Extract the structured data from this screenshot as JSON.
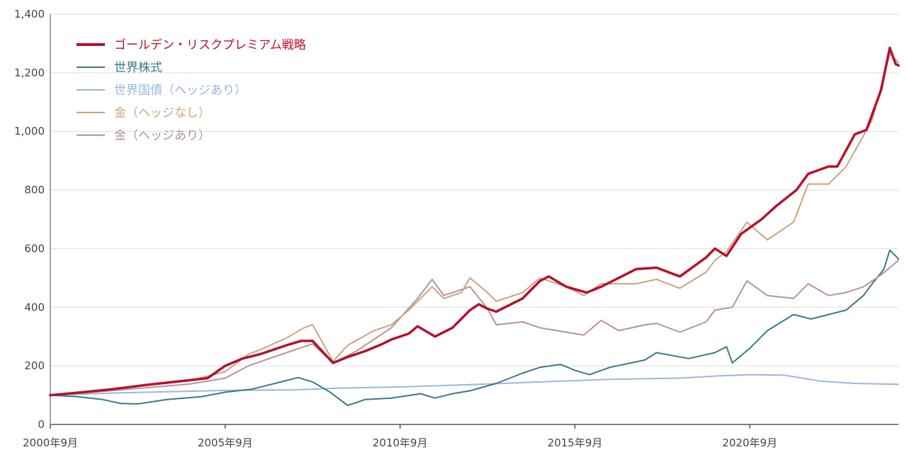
{
  "chart_data": {
    "type": "line",
    "title": "",
    "xlabel": "",
    "ylabel": "",
    "x_range": [
      "2000-09",
      "2024-12"
    ],
    "ylim": [
      0,
      1400
    ],
    "y_ticks": [
      0,
      200,
      400,
      600,
      800,
      1000,
      1200,
      1400
    ],
    "y_tick_labels": [
      "0",
      "200",
      "400",
      "600",
      "800",
      "1,000",
      "1,200",
      "1,400"
    ],
    "x_ticks": [
      "2000-09",
      "2005-09",
      "2010-09",
      "2015-09",
      "2020-09"
    ],
    "x_tick_labels": [
      "2000年9月",
      "2005年9月",
      "2010年9月",
      "2015年9月",
      "2020年9月"
    ],
    "grid": "horizontal",
    "legend_position": "top-left",
    "series": [
      {
        "name": "ゴールデン・リスクプレミアム戦略",
        "color": "#b5122e",
        "width": 3.5,
        "points": [
          [
            "2000-09",
            100
          ],
          [
            "2001-06",
            108
          ],
          [
            "2002-06",
            120
          ],
          [
            "2003-06",
            135
          ],
          [
            "2004-06",
            148
          ],
          [
            "2005-03",
            158
          ],
          [
            "2005-09",
            200
          ],
          [
            "2006-03",
            225
          ],
          [
            "2006-09",
            240
          ],
          [
            "2007-06",
            270
          ],
          [
            "2007-11",
            285
          ],
          [
            "2008-03",
            285
          ],
          [
            "2008-10",
            210
          ],
          [
            "2009-03",
            230
          ],
          [
            "2009-09",
            250
          ],
          [
            "2010-03",
            275
          ],
          [
            "2010-06",
            290
          ],
          [
            "2010-12",
            310
          ],
          [
            "2011-03",
            335
          ],
          [
            "2011-09",
            300
          ],
          [
            "2012-03",
            330
          ],
          [
            "2012-09",
            390
          ],
          [
            "2012-12",
            410
          ],
          [
            "2013-03",
            395
          ],
          [
            "2013-06",
            385
          ],
          [
            "2014-03",
            430
          ],
          [
            "2014-09",
            490
          ],
          [
            "2014-12",
            505
          ],
          [
            "2015-06",
            470
          ],
          [
            "2016-01",
            450
          ],
          [
            "2016-06",
            470
          ],
          [
            "2017-01",
            505
          ],
          [
            "2017-06",
            530
          ],
          [
            "2018-01",
            535
          ],
          [
            "2018-09",
            505
          ],
          [
            "2019-06",
            570
          ],
          [
            "2019-09",
            600
          ],
          [
            "2020-01",
            575
          ],
          [
            "2020-06",
            650
          ],
          [
            "2021-01",
            700
          ],
          [
            "2021-06",
            745
          ],
          [
            "2022-01",
            800
          ],
          [
            "2022-05",
            855
          ],
          [
            "2022-12",
            880
          ],
          [
            "2023-03",
            880
          ],
          [
            "2023-09",
            990
          ],
          [
            "2024-01",
            1005
          ],
          [
            "2024-06",
            1140
          ],
          [
            "2024-09",
            1285
          ],
          [
            "2024-11",
            1230
          ],
          [
            "2024-12",
            1225
          ]
        ]
      },
      {
        "name": "世界株式",
        "color": "#3a7a86",
        "width": 2,
        "points": [
          [
            "2000-09",
            100
          ],
          [
            "2001-06",
            95
          ],
          [
            "2002-03",
            85
          ],
          [
            "2002-09",
            72
          ],
          [
            "2003-03",
            70
          ],
          [
            "2004-01",
            85
          ],
          [
            "2005-01",
            95
          ],
          [
            "2005-09",
            110
          ],
          [
            "2006-06",
            120
          ],
          [
            "2007-06",
            150
          ],
          [
            "2007-10",
            160
          ],
          [
            "2008-03",
            145
          ],
          [
            "2008-09",
            110
          ],
          [
            "2009-03",
            65
          ],
          [
            "2009-09",
            85
          ],
          [
            "2010-06",
            90
          ],
          [
            "2011-04",
            105
          ],
          [
            "2011-09",
            90
          ],
          [
            "2012-03",
            105
          ],
          [
            "2012-09",
            115
          ],
          [
            "2013-06",
            140
          ],
          [
            "2014-03",
            175
          ],
          [
            "2014-09",
            195
          ],
          [
            "2015-04",
            205
          ],
          [
            "2015-09",
            185
          ],
          [
            "2016-02",
            170
          ],
          [
            "2016-09",
            195
          ],
          [
            "2017-09",
            220
          ],
          [
            "2018-01",
            245
          ],
          [
            "2018-12",
            225
          ],
          [
            "2019-09",
            245
          ],
          [
            "2020-01",
            265
          ],
          [
            "2020-03",
            210
          ],
          [
            "2020-09",
            260
          ],
          [
            "2021-03",
            320
          ],
          [
            "2021-12",
            375
          ],
          [
            "2022-06",
            360
          ],
          [
            "2022-12",
            375
          ],
          [
            "2023-06",
            390
          ],
          [
            "2023-12",
            440
          ],
          [
            "2024-03",
            480
          ],
          [
            "2024-07",
            530
          ],
          [
            "2024-09",
            595
          ],
          [
            "2024-12",
            565
          ]
        ]
      },
      {
        "name": "世界国債（ヘッジあり）",
        "color": "#9ab8da",
        "width": 2,
        "points": [
          [
            "2000-09",
            100
          ],
          [
            "2002-09",
            108
          ],
          [
            "2005-09",
            116
          ],
          [
            "2007-09",
            118
          ],
          [
            "2008-12",
            124
          ],
          [
            "2010-09",
            128
          ],
          [
            "2012-09",
            136
          ],
          [
            "2014-09",
            145
          ],
          [
            "2016-09",
            154
          ],
          [
            "2018-09",
            158
          ],
          [
            "2019-09",
            165
          ],
          [
            "2020-09",
            170
          ],
          [
            "2021-09",
            168
          ],
          [
            "2022-09",
            148
          ],
          [
            "2023-09",
            140
          ],
          [
            "2024-12",
            137
          ]
        ]
      },
      {
        "name": "金（ヘッジなし）",
        "color": "#c9a57a",
        "width": 2,
        "points": [
          [
            "2000-09",
            100
          ],
          [
            "2001-09",
            112
          ],
          [
            "2002-09",
            125
          ],
          [
            "2003-09",
            140
          ],
          [
            "2004-09",
            150
          ],
          [
            "2005-09",
            180
          ],
          [
            "2006-05",
            240
          ],
          [
            "2006-09",
            255
          ],
          [
            "2007-06",
            295
          ],
          [
            "2007-12",
            330
          ],
          [
            "2008-03",
            340
          ],
          [
            "2008-10",
            215
          ],
          [
            "2009-03",
            270
          ],
          [
            "2009-12",
            320
          ],
          [
            "2010-06",
            340
          ],
          [
            "2010-12",
            390
          ],
          [
            "2011-08",
            470
          ],
          [
            "2011-12",
            430
          ],
          [
            "2012-06",
            450
          ],
          [
            "2012-09",
            500
          ],
          [
            "2013-03",
            450
          ],
          [
            "2013-06",
            420
          ],
          [
            "2014-03",
            450
          ],
          [
            "2014-09",
            500
          ],
          [
            "2015-06",
            470
          ],
          [
            "2015-12",
            440
          ],
          [
            "2016-06",
            480
          ],
          [
            "2017-06",
            480
          ],
          [
            "2018-01",
            495
          ],
          [
            "2018-09",
            465
          ],
          [
            "2019-06",
            520
          ],
          [
            "2019-09",
            560
          ],
          [
            "2020-01",
            590
          ],
          [
            "2020-08",
            690
          ],
          [
            "2021-03",
            630
          ],
          [
            "2021-12",
            690
          ],
          [
            "2022-05",
            820
          ],
          [
            "2022-12",
            820
          ],
          [
            "2023-06",
            880
          ],
          [
            "2023-12",
            985
          ],
          [
            "2024-03",
            1040
          ],
          [
            "2024-09",
            1265
          ],
          [
            "2024-12",
            1235
          ]
        ]
      },
      {
        "name": "金（ヘッジあり）",
        "color": "#b6929f",
        "width": 2,
        "points": [
          [
            "2000-09",
            100
          ],
          [
            "2001-09",
            108
          ],
          [
            "2002-09",
            118
          ],
          [
            "2003-09",
            128
          ],
          [
            "2004-09",
            138
          ],
          [
            "2005-09",
            158
          ],
          [
            "2006-05",
            200
          ],
          [
            "2007-06",
            245
          ],
          [
            "2007-12",
            265
          ],
          [
            "2008-03",
            275
          ],
          [
            "2008-10",
            210
          ],
          [
            "2009-06",
            250
          ],
          [
            "2010-06",
            330
          ],
          [
            "2011-03",
            430
          ],
          [
            "2011-08",
            495
          ],
          [
            "2011-12",
            440
          ],
          [
            "2012-09",
            470
          ],
          [
            "2013-03",
            395
          ],
          [
            "2013-06",
            340
          ],
          [
            "2014-03",
            350
          ],
          [
            "2014-09",
            330
          ],
          [
            "2015-06",
            315
          ],
          [
            "2015-12",
            305
          ],
          [
            "2016-06",
            355
          ],
          [
            "2016-12",
            320
          ],
          [
            "2017-09",
            340
          ],
          [
            "2018-01",
            345
          ],
          [
            "2018-09",
            315
          ],
          [
            "2019-06",
            350
          ],
          [
            "2019-09",
            390
          ],
          [
            "2020-03",
            400
          ],
          [
            "2020-08",
            490
          ],
          [
            "2021-03",
            440
          ],
          [
            "2021-12",
            430
          ],
          [
            "2022-05",
            480
          ],
          [
            "2022-12",
            440
          ],
          [
            "2023-06",
            450
          ],
          [
            "2023-12",
            470
          ],
          [
            "2024-06",
            510
          ],
          [
            "2024-12",
            560
          ]
        ]
      }
    ]
  }
}
